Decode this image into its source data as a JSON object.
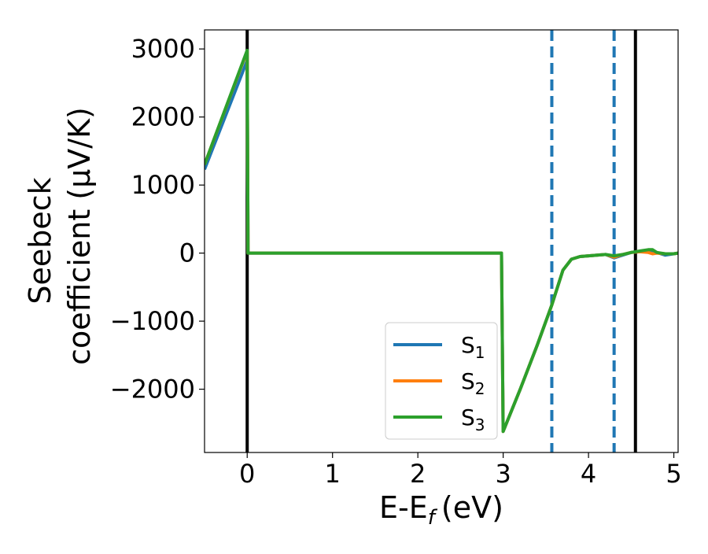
{
  "chart_data": {
    "type": "line",
    "xlabel": "E-E",
    "xlabel_sub": "f",
    "xlabel_unit": "(eV)",
    "ylabel_line1": "Seebeck",
    "ylabel_line2": "coefficient  (μV/K)",
    "xlim": [
      -0.5,
      5.05
    ],
    "ylim": [
      -2930,
      3280
    ],
    "xticks": [
      0,
      1,
      2,
      3,
      4,
      5
    ],
    "yticks": [
      3000,
      2000,
      1000,
      0,
      -1000,
      -2000
    ],
    "xtick_labels": [
      "0",
      "1",
      "2",
      "3",
      "4",
      "5"
    ],
    "ytick_labels": [
      "3000",
      "2000",
      "1000",
      "0",
      "−1000",
      "−2000"
    ],
    "legend_position": "bottom-center",
    "vertical_lines": [
      {
        "x": 0.0,
        "style": "solid",
        "color": "#000000"
      },
      {
        "x": 4.55,
        "style": "solid",
        "color": "#000000"
      },
      {
        "x": 3.57,
        "style": "dashed",
        "color": "#1f77b4"
      },
      {
        "x": 4.3,
        "style": "dashed",
        "color": "#1f77b4"
      }
    ],
    "series": [
      {
        "name": "S",
        "sub": "1",
        "color": "#1f77b4",
        "x": [
          -0.5,
          0.0,
          0.0,
          0.01,
          2.98,
          2.98,
          3.0,
          3.2,
          3.4,
          3.57,
          3.7,
          3.8,
          3.9,
          4.0,
          4.1,
          4.2,
          4.3,
          4.4,
          4.5,
          4.6,
          4.7,
          4.75,
          4.8,
          4.9,
          5.0,
          5.05
        ],
        "y": [
          1230,
          2830,
          2830,
          0,
          0,
          0,
          -2620,
          -2000,
          -1350,
          -760,
          -250,
          -90,
          -50,
          -40,
          -30,
          -20,
          -70,
          -30,
          10,
          20,
          40,
          20,
          10,
          -30,
          -10,
          0
        ]
      },
      {
        "name": "S",
        "sub": "2",
        "color": "#ff7f0e",
        "x": [
          -0.5,
          0.0,
          0.0,
          0.01,
          2.98,
          2.98,
          3.0,
          3.2,
          3.4,
          3.57,
          3.7,
          3.8,
          3.9,
          4.0,
          4.1,
          4.2,
          4.3,
          4.4,
          4.5,
          4.6,
          4.7,
          4.75,
          4.8,
          4.9,
          5.0,
          5.05
        ],
        "y": [
          1300,
          2970,
          2970,
          0,
          0,
          0,
          -2620,
          -2000,
          -1350,
          -760,
          -250,
          -90,
          -50,
          -40,
          -30,
          -20,
          -60,
          -20,
          10,
          20,
          10,
          -10,
          0,
          -10,
          -10,
          0
        ]
      },
      {
        "name": "S",
        "sub": "3",
        "color": "#2ca02c",
        "x": [
          -0.5,
          0.0,
          0.0,
          0.01,
          2.98,
          2.98,
          3.0,
          3.2,
          3.4,
          3.57,
          3.7,
          3.8,
          3.9,
          4.0,
          4.1,
          4.2,
          4.3,
          4.4,
          4.5,
          4.6,
          4.7,
          4.75,
          4.8,
          4.9,
          5.0,
          5.05
        ],
        "y": [
          1300,
          2980,
          2980,
          0,
          0,
          0,
          -2620,
          -2000,
          -1350,
          -760,
          -250,
          -90,
          -50,
          -40,
          -30,
          -20,
          -40,
          -20,
          10,
          30,
          50,
          50,
          10,
          -10,
          -10,
          0
        ]
      }
    ]
  }
}
